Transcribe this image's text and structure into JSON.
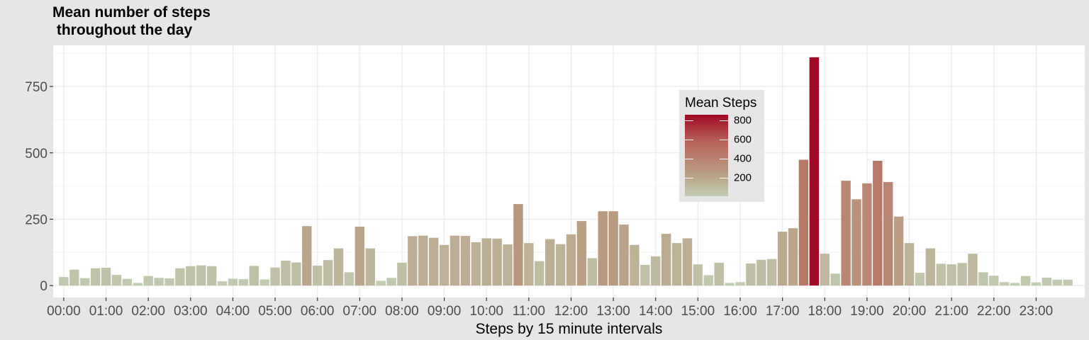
{
  "chart_data": {
    "type": "bar",
    "title": "Mean number of steps\n throughout the day",
    "xlabel": "Steps by 15 minute intervals",
    "ylabel": "",
    "ylim": [
      -45,
      905
    ],
    "yticks": [
      0,
      250,
      500,
      750
    ],
    "xtick_labels": [
      "00:00",
      "01:00",
      "02:00",
      "03:00",
      "04:00",
      "05:00",
      "06:00",
      "07:00",
      "08:00",
      "09:00",
      "10:00",
      "11:00",
      "12:00",
      "13:00",
      "14:00",
      "15:00",
      "16:00",
      "17:00",
      "18:00",
      "19:00",
      "20:00",
      "21:00",
      "22:00",
      "23:00"
    ],
    "interval_minutes": 15,
    "values": [
      32,
      60,
      28,
      65,
      67,
      40,
      25,
      10,
      36,
      29,
      27,
      65,
      73,
      76,
      73,
      16,
      26,
      24,
      74,
      23,
      68,
      94,
      87,
      224,
      75,
      96,
      140,
      50,
      222,
      140,
      18,
      29,
      86,
      186,
      188,
      180,
      153,
      188,
      187,
      163,
      178,
      177,
      155,
      307,
      160,
      92,
      175,
      156,
      193,
      243,
      103,
      280,
      280,
      230,
      153,
      78,
      110,
      195,
      160,
      178,
      80,
      39,
      86,
      10,
      13,
      83,
      97,
      100,
      203,
      216,
      474,
      860,
      120,
      45,
      395,
      325,
      385,
      470,
      390,
      260,
      160,
      48,
      140,
      82,
      80,
      85,
      120,
      50,
      37,
      13,
      10,
      36,
      12,
      30,
      22,
      22
    ],
    "grid": true,
    "legend": {
      "title": "Mean Steps",
      "labels": [
        "800",
        "600",
        "400",
        "200"
      ],
      "placement": "inside-top-right",
      "color_low": "#c1cdb3",
      "color_mid": "#b99a7f",
      "color_high": "#a00a24"
    },
    "colors": {
      "panel": "#ffffff",
      "background": "#e6e6e6",
      "grid_major": "#ebebeb",
      "grid_minor": "#f4f4f4"
    }
  }
}
